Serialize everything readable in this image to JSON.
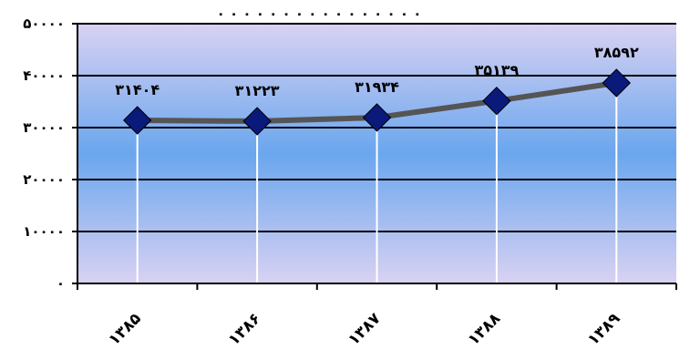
{
  "chart_data": {
    "type": "line",
    "title_row": "۰ ۰ ۰ ۰ ۰ ۰ ۰ ۰ ۰ ۰ ۰ ۰ ۰ ۰ ۰ ۰",
    "categories": [
      "۱۳۸۵",
      "۱۳۸۶",
      "۱۳۸۷",
      "۱۳۸۸",
      "۱۳۸۹"
    ],
    "values": [
      31404,
      31223,
      31934,
      35139,
      38592
    ],
    "value_labels": [
      "۳۱۴۰۴",
      "۳۱۲۲۳",
      "۳۱۹۳۴",
      "۳۵۱۳۹",
      "۳۸۵۹۲"
    ],
    "ylim": [
      0,
      50000
    ],
    "y_ticks": [
      0,
      10000,
      20000,
      30000,
      40000,
      50000
    ],
    "y_tick_labels": [
      "۰",
      "۱۰۰۰۰",
      "۲۰۰۰۰",
      "۳۰۰۰۰",
      "۴۰۰۰۰",
      "۵۰۰۰۰"
    ],
    "grid": true,
    "colors": {
      "line": "#555555",
      "marker": "#0a1a7a",
      "drop_line": "#ffffff",
      "bg_top": "#d9d2f2",
      "bg_mid": "#6aa6ee",
      "bg_bottom": "#d9d2f2"
    }
  }
}
